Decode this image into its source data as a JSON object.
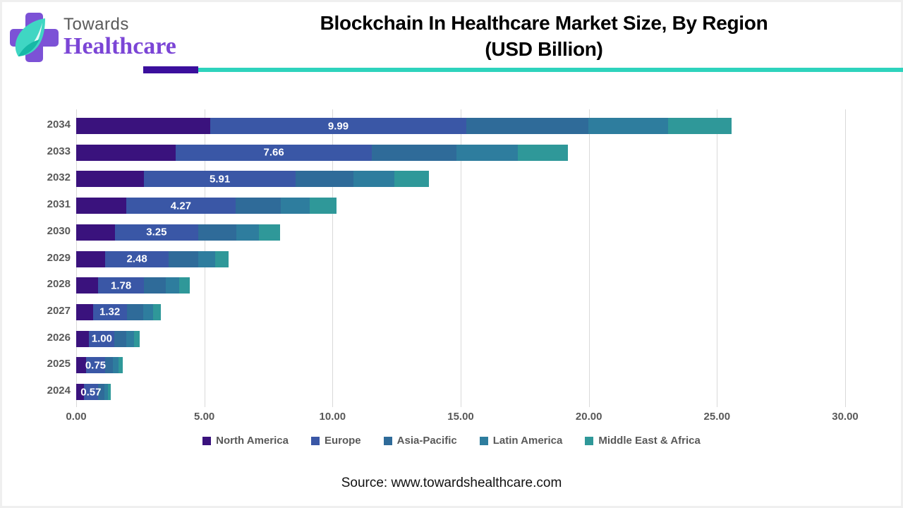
{
  "logo": {
    "towards": "Towards",
    "healthcare": "Healthcare"
  },
  "header": {
    "title_line1": "Blockchain In Healthcare Market Size, By Region",
    "title_line2": "(USD Billion)"
  },
  "source_line": "Source: www.towardshealthcare.com",
  "colors": {
    "divider_purple": "#3b0f9d",
    "divider_teal": "#2ed3bd",
    "logo_purple": "#7c52d6",
    "logo_leaf_teal": "#3fd6c3",
    "gridline": "#d9d9d9",
    "axis_text": "#595959",
    "bar_label": "#ffffff"
  },
  "chart_data": {
    "type": "bar",
    "orientation": "horizontal",
    "stacked": true,
    "title": "Blockchain In Healthcare Market Size, By Region (USD Billion)",
    "categories": [
      "2034",
      "2033",
      "2032",
      "2031",
      "2030",
      "2029",
      "2028",
      "2027",
      "2026",
      "2025",
      "2024"
    ],
    "series": [
      {
        "name": "North America",
        "color": "#3a127d",
        "values": [
          5.23,
          3.88,
          2.65,
          1.95,
          1.51,
          1.13,
          0.86,
          0.65,
          0.5,
          0.38,
          0.29
        ]
      },
      {
        "name": "Europe",
        "color": "#3a57a6",
        "values": [
          9.99,
          7.66,
          5.91,
          4.27,
          3.25,
          2.48,
          1.78,
          1.32,
          1.0,
          0.75,
          0.57
        ]
      },
      {
        "name": "Asia-Pacific",
        "color": "#2f6b99",
        "values": [
          4.76,
          3.3,
          2.25,
          1.75,
          1.5,
          1.15,
          0.85,
          0.64,
          0.46,
          0.31,
          0.23
        ]
      },
      {
        "name": "Latin America",
        "color": "#2e7d9e",
        "values": [
          3.12,
          2.4,
          1.6,
          1.15,
          0.88,
          0.65,
          0.52,
          0.38,
          0.3,
          0.21,
          0.15
        ]
      },
      {
        "name": "Middle East & Africa",
        "color": "#2f9899",
        "values": [
          2.46,
          1.95,
          1.35,
          1.03,
          0.82,
          0.54,
          0.42,
          0.31,
          0.22,
          0.17,
          0.11
        ]
      }
    ],
    "data_labels": [
      "9.99",
      "7.66",
      "5.91",
      "4.27",
      "3.25",
      "2.48",
      "1.78",
      "1.32",
      "1.00",
      "0.75",
      "0.57"
    ],
    "labeled_series": "Europe",
    "xlim": [
      0,
      30
    ],
    "x_ticks": [
      "0.00",
      "5.00",
      "10.00",
      "15.00",
      "20.00",
      "25.00",
      "30.00"
    ],
    "grid": true,
    "legend_position": "bottom"
  }
}
